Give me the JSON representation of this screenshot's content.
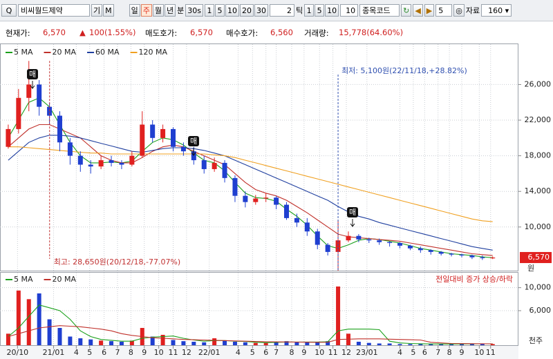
{
  "toolbar": {
    "stock_name": "비씨월드제약",
    "buttons": [
      "기",
      "M"
    ],
    "periods": [
      "일",
      "주",
      "월",
      "년"
    ],
    "selected_period_index": 1,
    "minute_label": "분",
    "seconds": "30s",
    "minute_buttons": [
      "1",
      "5",
      "10",
      "20",
      "30"
    ],
    "tick_input": "2",
    "tick_label": "틱",
    "tick_buttons": [
      "1",
      "5",
      "10"
    ],
    "tick_input2": "10",
    "code_label": "종목코드",
    "step": "5",
    "data_label": "자료",
    "data_count": "160"
  },
  "info": {
    "current_label": "현재가:",
    "current": "6,570",
    "change": "100(1.55%)",
    "ask_label": "매도호가:",
    "ask": "6,570",
    "bid_label": "매수호가:",
    "bid": "6,560",
    "volume_label": "거래량:",
    "volume": "15,778(64.60%)"
  },
  "chart_data": [
    {
      "type": "candlestick",
      "up_color": "#e0201f",
      "down_color": "#1f3fd0",
      "grid": true,
      "open": [
        19000,
        21000,
        24500,
        26000,
        23500,
        22500,
        19500,
        18000,
        17000,
        16800,
        17500,
        17200,
        17000,
        18000,
        21500,
        20000,
        21000,
        19000,
        18500,
        17500,
        16500,
        17200,
        15500,
        13500,
        12800,
        13200,
        13300,
        12500,
        11000,
        10500,
        9500,
        8000,
        7200,
        8500,
        9000,
        8600,
        8500,
        8300,
        8200,
        7900,
        7600,
        7400,
        7200,
        7000,
        6900,
        6800,
        6600,
        6480
      ],
      "high": [
        21500,
        25500,
        28650,
        26500,
        24000,
        23000,
        20000,
        18500,
        17500,
        18000,
        18000,
        17500,
        18500,
        23000,
        22000,
        21500,
        21200,
        19500,
        19000,
        18000,
        17800,
        17500,
        15800,
        14000,
        13600,
        13800,
        13500,
        12800,
        11500,
        11000,
        9800,
        8200,
        10800,
        9500,
        9200,
        8800,
        8700,
        8400,
        8300,
        8000,
        7800,
        7500,
        7300,
        7100,
        7000,
        6900,
        6800,
        6700
      ],
      "low": [
        18800,
        20500,
        23000,
        22500,
        21500,
        18500,
        17000,
        16200,
        16000,
        16500,
        16800,
        16500,
        16800,
        17800,
        19500,
        19500,
        18500,
        18000,
        17000,
        16000,
        16200,
        15000,
        12800,
        12200,
        12500,
        12800,
        12000,
        10800,
        10000,
        9000,
        7500,
        6800,
        5100,
        8300,
        8300,
        8200,
        8000,
        7800,
        7600,
        7400,
        7100,
        6900,
        6800,
        6700,
        6600,
        6400,
        6300,
        6400
      ],
      "close": [
        21000,
        24500,
        26000,
        23500,
        22500,
        19500,
        18000,
        17000,
        16800,
        17500,
        17200,
        17000,
        18000,
        21500,
        20000,
        21000,
        19000,
        18500,
        17500,
        16500,
        17200,
        15500,
        13500,
        12800,
        13200,
        13300,
        12500,
        11000,
        10500,
        9500,
        8000,
        7200,
        8500,
        9000,
        8600,
        8500,
        8300,
        8200,
        7900,
        7600,
        7400,
        7200,
        7000,
        6900,
        6800,
        6600,
        6500,
        6570
      ],
      "series": [
        {
          "name": "5 MA",
          "color": "#1aa01a",
          "values": [
            20000,
            22000,
            24000,
            24500,
            23500,
            21500,
            19500,
            18000,
            17200,
            17200,
            17300,
            17200,
            17400,
            18500,
            19500,
            20000,
            19800,
            19200,
            18300,
            17500,
            17200,
            16300,
            15000,
            13800,
            13300,
            13200,
            12900,
            12000,
            11200,
            10200,
            9000,
            7900,
            7600,
            8000,
            8500,
            8700,
            8600,
            8400,
            8200,
            7900,
            7600,
            7400,
            7200,
            7000,
            6900,
            6800,
            6650,
            6550
          ]
        },
        {
          "name": "20 MA",
          "color": "#c0302a",
          "values": [
            19000,
            20000,
            21000,
            21500,
            21500,
            21000,
            20500,
            20000,
            19000,
            18000,
            17500,
            17200,
            17200,
            17800,
            18500,
            19000,
            19200,
            19000,
            18500,
            18000,
            17500,
            17000,
            16000,
            15000,
            14200,
            13800,
            13500,
            13000,
            12300,
            11600,
            10800,
            10000,
            9200,
            8900,
            8800,
            8700,
            8600,
            8500,
            8400,
            8200,
            8000,
            7800,
            7600,
            7400,
            7200,
            7000,
            6900,
            6800
          ]
        },
        {
          "name": "60 MA",
          "color": "#1f3f9f",
          "values": [
            17500,
            18500,
            19500,
            20000,
            20300,
            20300,
            20200,
            20000,
            19700,
            19400,
            19100,
            18800,
            18500,
            18400,
            18600,
            18800,
            18900,
            18900,
            18800,
            18600,
            18300,
            18000,
            17500,
            17000,
            16500,
            16000,
            15500,
            15000,
            14500,
            14000,
            13500,
            13000,
            12300,
            11700,
            11200,
            10900,
            10500,
            10200,
            9900,
            9600,
            9300,
            9000,
            8700,
            8400,
            8100,
            7800,
            7600,
            7400
          ]
        },
        {
          "name": "120 MA",
          "color": "#f0a020",
          "values": [
            19000,
            19000,
            18900,
            18800,
            18700,
            18600,
            18500,
            18400,
            18300,
            18300,
            18200,
            18200,
            18200,
            18200,
            18200,
            18200,
            18200,
            18200,
            18200,
            18200,
            18100,
            18000,
            17800,
            17500,
            17200,
            16900,
            16600,
            16300,
            16000,
            15700,
            15400,
            15100,
            14800,
            14500,
            14200,
            13900,
            13600,
            13300,
            13000,
            12700,
            12400,
            12100,
            11800,
            11500,
            11200,
            10900,
            10700,
            10600
          ]
        }
      ],
      "xlim": [
        -0.8,
        49.5
      ],
      "ylim": [
        5100,
        30530
      ],
      "yticks": [
        {
          "value": 10000,
          "label": "10,000"
        },
        {
          "value": 14000,
          "label": "14,000"
        },
        {
          "value": 18000,
          "label": "18,000"
        },
        {
          "value": 22000,
          "label": "22,000"
        },
        {
          "value": 26000,
          "label": "26,000"
        }
      ],
      "unit": "원",
      "price_tag": "6,570",
      "annotations": [
        "최고: 28,650원(20/12/18,-77.07%)",
        "최저: 5,100원(22/11/18,+28.82%)"
      ],
      "signals": [
        "매",
        "매",
        "매"
      ]
    },
    {
      "type": "bar",
      "values": [
        2000,
        9500,
        8000,
        9000,
        4500,
        3000,
        1500,
        1200,
        1000,
        800,
        700,
        600,
        800,
        3000,
        1500,
        1800,
        900,
        700,
        600,
        500,
        1200,
        800,
        600,
        500,
        400,
        400,
        600,
        700,
        500,
        600,
        500,
        700,
        10200,
        2000,
        600,
        400,
        300,
        300,
        200,
        200,
        200,
        200,
        250,
        200,
        200,
        300,
        250,
        200
      ],
      "series": [
        {
          "name": "5 MA",
          "color": "#1aa01a",
          "values": [
            1500,
            3000,
            5000,
            7000,
            6500,
            6000,
            4500,
            2500,
            1500,
            1000,
            850,
            700,
            700,
            1200,
            1400,
            1500,
            1600,
            1200,
            900,
            700,
            800,
            800,
            700,
            650,
            500,
            450,
            500,
            550,
            550,
            550,
            550,
            600,
            2500,
            2800,
            2800,
            2800,
            2700,
            700,
            400,
            300,
            250,
            220,
            210,
            210,
            220,
            230,
            240,
            230
          ]
        },
        {
          "name": "20 MA",
          "color": "#c0302a",
          "values": [
            1500,
            2000,
            2500,
            3000,
            3200,
            3400,
            3300,
            3200,
            3000,
            2800,
            2500,
            2000,
            1700,
            1500,
            1300,
            1200,
            1100,
            1000,
            950,
            900,
            850,
            800,
            750,
            700,
            650,
            600,
            580,
            560,
            540,
            520,
            500,
            520,
            1000,
            1050,
            1100,
            1100,
            1100,
            1050,
            1000,
            950,
            900,
            500,
            400,
            300,
            280,
            260,
            250,
            240
          ]
        }
      ],
      "xlim": [
        -0.8,
        49.5
      ],
      "ylim": [
        0,
        12600
      ],
      "yticks": [
        {
          "value": 6000,
          "label": "6,000"
        },
        {
          "value": 10000,
          "label": "10,000"
        }
      ],
      "xticks": [
        {
          "value": 0.9,
          "label": "20/10"
        },
        {
          "value": 4.4,
          "label": "21/01"
        },
        {
          "value": 6.6,
          "label": "4"
        },
        {
          "value": 7.9,
          "label": "5"
        },
        {
          "value": 9.3,
          "label": "6"
        },
        {
          "value": 10.6,
          "label": "7"
        },
        {
          "value": 11.9,
          "label": "8"
        },
        {
          "value": 13.2,
          "label": "9"
        },
        {
          "value": 14.6,
          "label": "10"
        },
        {
          "value": 16,
          "label": "11"
        },
        {
          "value": 17.3,
          "label": "12"
        },
        {
          "value": 19.5,
          "label": "22/01"
        },
        {
          "value": 22.3,
          "label": "4"
        },
        {
          "value": 23.7,
          "label": "5"
        },
        {
          "value": 25,
          "label": "6"
        },
        {
          "value": 26,
          "label": "7"
        },
        {
          "value": 27.5,
          "label": "8"
        },
        {
          "value": 28.7,
          "label": "9"
        },
        {
          "value": 30.2,
          "label": "10"
        },
        {
          "value": 31.5,
          "label": "11"
        },
        {
          "value": 32.8,
          "label": "12"
        },
        {
          "value": 34.8,
          "label": "23/01"
        },
        {
          "value": 38,
          "label": "4"
        },
        {
          "value": 39.3,
          "label": "5"
        },
        {
          "value": 40.4,
          "label": "6"
        },
        {
          "value": 41.7,
          "label": "7"
        },
        {
          "value": 42.8,
          "label": "8"
        },
        {
          "value": 44,
          "label": "9"
        },
        {
          "value": 45.7,
          "label": "10"
        },
        {
          "value": 46.8,
          "label": "11"
        }
      ],
      "unit": "천주",
      "note": "전일대비 증가 상승/하락"
    }
  ]
}
